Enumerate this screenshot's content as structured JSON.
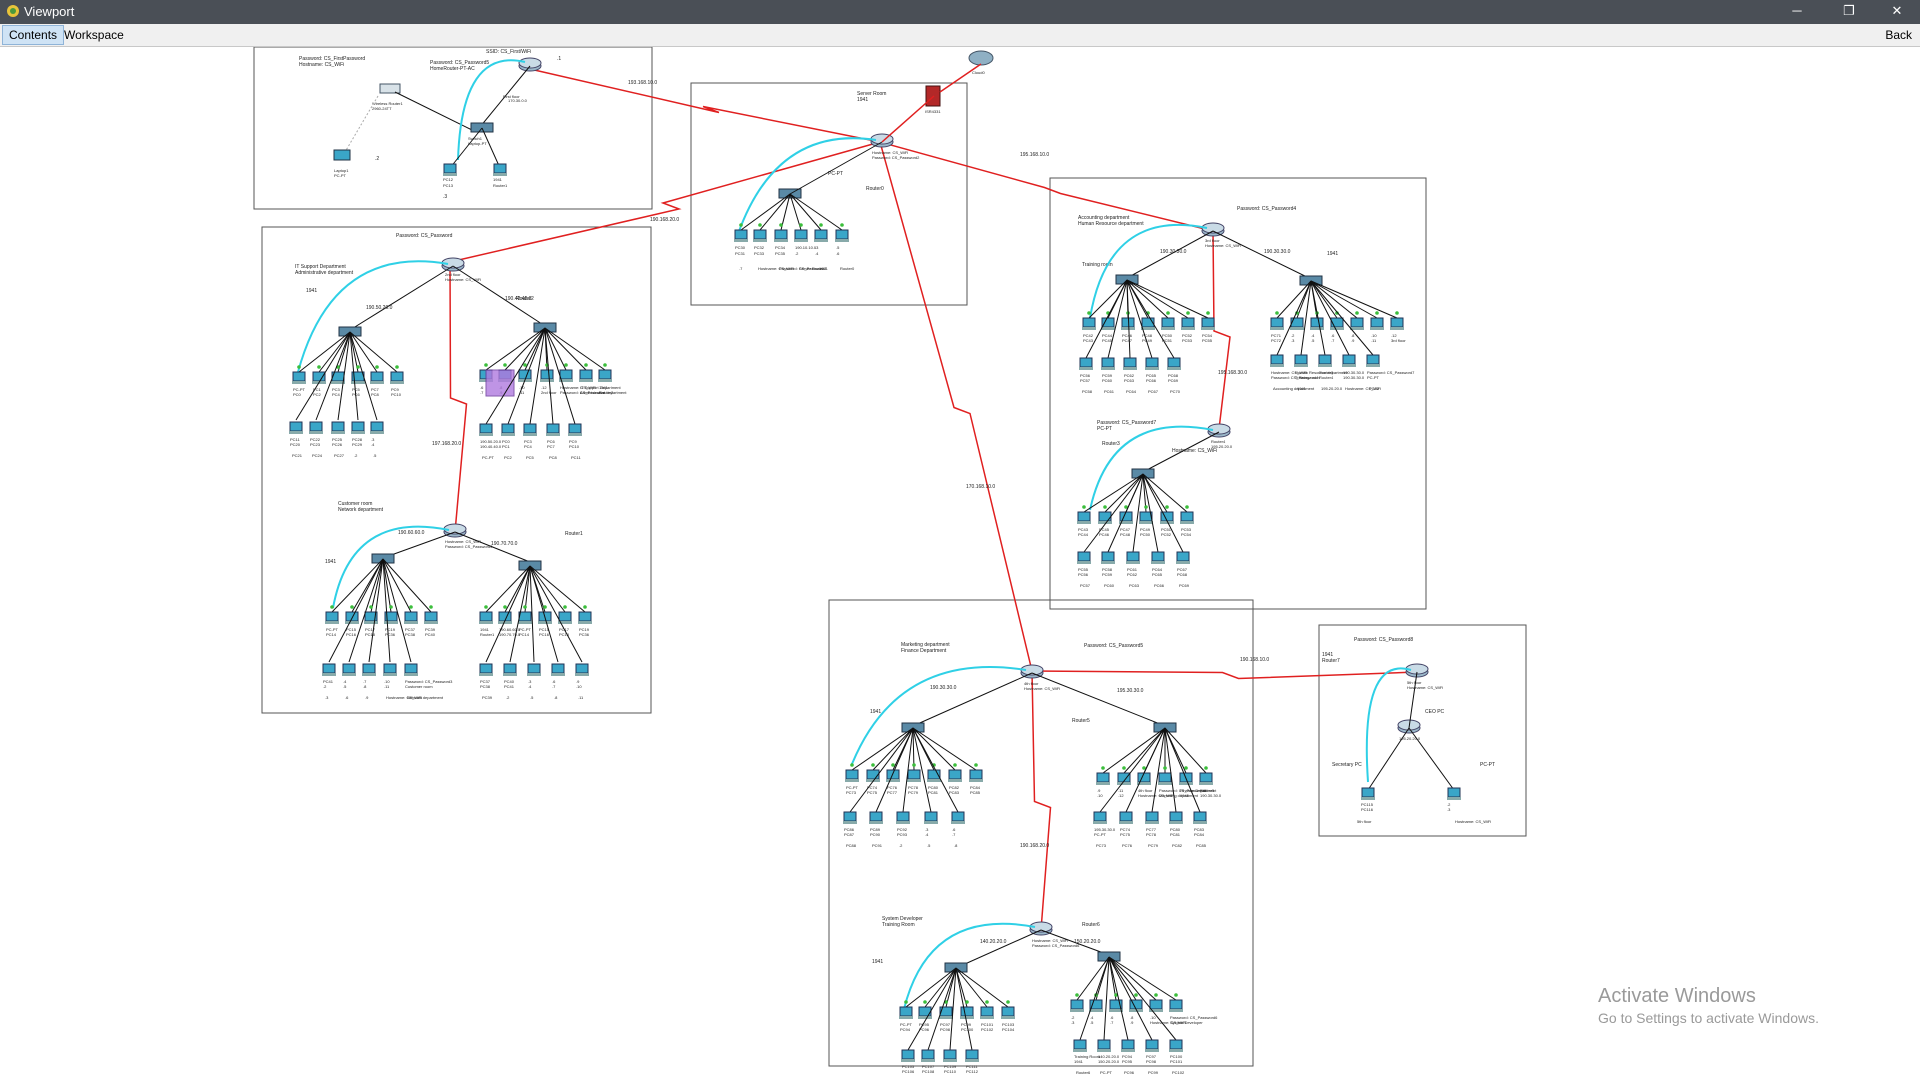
{
  "window": {
    "title": "Viewport",
    "tabs": [
      {
        "label": "Contents",
        "active": true
      },
      {
        "label": "Workspace",
        "active": false
      }
    ],
    "back_label": "Back"
  },
  "watermark": {
    "title": "Activate Windows",
    "subtitle": "Go to Settings to activate Windows."
  },
  "colors": {
    "router_link": "#e02020",
    "wireless_link": "#2fd0e6",
    "lan_link": "#111111",
    "port_up": "#3cbe3c",
    "device": "#3aa6c8",
    "area_border": "#555555"
  },
  "areas": [
    {
      "id": "first",
      "labels": [
        "First floor",
        "SSID: CS_First/WiFi",
        "Password: CS_FirstPassword",
        "Hostname: CS_WiFi",
        "Password: CS_Password5",
        "HomeRouter-PT-AC",
        "Wireless Router1",
        "2960-24TT",
        "Switch1",
        "Laptop-PT",
        "Laptop1",
        "PC-PT",
        "PC12",
        "PC13",
        "1941",
        "Router1",
        "170.30.0.0",
        ".1",
        ".2",
        ".3"
      ]
    },
    {
      "id": "server",
      "labels": [
        "Hostname: CS_WiFi",
        "Password: CS_Password2",
        "Server Room",
        "1941",
        "Router0",
        "ISR4331",
        "Cloud0",
        "PC-PT",
        "PC30",
        "PC31",
        "PC32",
        "PC33",
        "PC34",
        "PC35",
        "190.10.10.0",
        ".2",
        ".3",
        ".4",
        ".5",
        ".6",
        ".7"
      ]
    },
    {
      "id": "second",
      "labels": [
        "2nd floor",
        "Hostname: CS_WiFi",
        "Password: CS_Password",
        "IT Support Department",
        "Administrative department",
        "1941",
        "Router2",
        "190.50.20.0",
        "190.40.40.0",
        "PC-PT",
        "PC0",
        "PC1",
        "PC2",
        "PC3",
        "PC4",
        "PC5",
        "PC6",
        "PC7",
        "PC8",
        "PC9",
        "PC10",
        "PC11",
        "PC20",
        "PC21",
        "PC22",
        "PC23",
        "PC24",
        "PC25",
        "PC26",
        "PC27",
        "PC28",
        "PC29",
        ".2",
        ".3",
        ".4",
        ".5",
        ".6",
        ".7",
        ".8",
        ".9",
        ".10",
        ".11",
        ".12"
      ]
    },
    {
      "id": "second-lower",
      "labels": [
        "Hostname: CS_WiFi",
        "Password: CS_Password3",
        "Customer room",
        "Network department",
        "1941",
        "Router1",
        "190.60.60.0",
        "190.70.70.0",
        "PC-PT",
        "PC14",
        "PC15",
        "PC16",
        "PC17",
        "PC18",
        "PC19",
        "PC36",
        "PC37",
        "PC38",
        "PC39",
        "PC40",
        "PC41",
        ".2",
        ".3",
        ".4",
        ".5",
        ".6",
        ".7",
        ".8",
        ".9",
        ".10",
        ".11"
      ]
    },
    {
      "id": "third",
      "labels": [
        "3rd floor",
        "Hostname: CS_WiFi",
        "Password: CS_Password4",
        "Accounting department",
        "Human Resource department",
        "Training room",
        "1941",
        "Router3",
        "Router4",
        "195.20.20.0",
        "190.30.30.0",
        "190.30.30.0",
        "Hostname: CS_WiFi",
        "Password: CS_Password7",
        "PC-PT",
        "PC42",
        "PC43",
        "PC44",
        "PC45",
        "PC46",
        "PC47",
        "PC48",
        "PC49",
        "PC50",
        "PC51",
        "PC52",
        "PC53",
        "PC54",
        "PC55",
        "PC56",
        "PC57",
        "PC58",
        "PC59",
        "PC60",
        "PC61",
        "PC62",
        "PC63",
        "PC64",
        "PC65",
        "PC66",
        "PC67",
        "PC68",
        "PC69",
        "PC70",
        "PC71",
        "PC72",
        ".2",
        ".3",
        ".4",
        ".5",
        ".6",
        ".7",
        ".8",
        ".9",
        ".10",
        ".11",
        ".12"
      ]
    },
    {
      "id": "fourth",
      "labels": [
        "4th floor",
        "Hostname: CS_WiFi",
        "Password: CS_Password5",
        "Marketing department",
        "Finance Department",
        "1941",
        "Router5",
        "190.30.30.0",
        "195.30.30.0",
        "PC-PT",
        "PC73",
        "PC74",
        "PC75",
        "PC76",
        "PC77",
        "PC78",
        "PC79",
        "PC80",
        "PC81",
        "PC82",
        "PC83",
        "PC84",
        "PC85",
        "PC86",
        "PC87",
        "PC88",
        "PC89",
        "PC90",
        "PC91",
        "PC92",
        "PC93",
        ".2",
        ".3",
        ".4",
        ".5",
        ".6",
        ".7",
        ".8",
        ".9",
        ".10",
        ".11",
        ".12"
      ]
    },
    {
      "id": "fourth-lower",
      "labels": [
        "Hostname: CS_WiFi",
        "Password: CS_Password6",
        "System Developer",
        "Training Room",
        "1941",
        "Router6",
        "140.20.20.0",
        "150.20.20.0",
        "PC-PT",
        "PC94",
        "PC95",
        "PC96",
        "PC97",
        "PC98",
        "PC99",
        "PC100",
        "PC101",
        "PC102",
        "PC103",
        "PC104",
        "PC105",
        "PC106",
        "PC107",
        "PC108",
        "PC109",
        "PC110",
        "PC111",
        "PC112",
        ".2",
        ".3",
        ".4",
        ".5",
        ".6",
        ".7",
        ".8",
        ".9",
        ".10"
      ]
    },
    {
      "id": "fifth",
      "labels": [
        "5th floor",
        "Hostname: CS_WiFi",
        "Password: CS_Password8",
        "1941",
        "Router7",
        "195.20.20.0",
        "CEO PC",
        "Secretary PC",
        "PC-PT",
        "PC115",
        "PC116",
        ".2",
        ".3"
      ]
    }
  ],
  "wan_links": [
    "193.168.10.0",
    "190.168.20.0",
    "195.168.10.0",
    "170.168.10.0",
    "190.168.10.0",
    "190.168.20.0",
    "195.168.30.0",
    "197.168.20.0"
  ]
}
